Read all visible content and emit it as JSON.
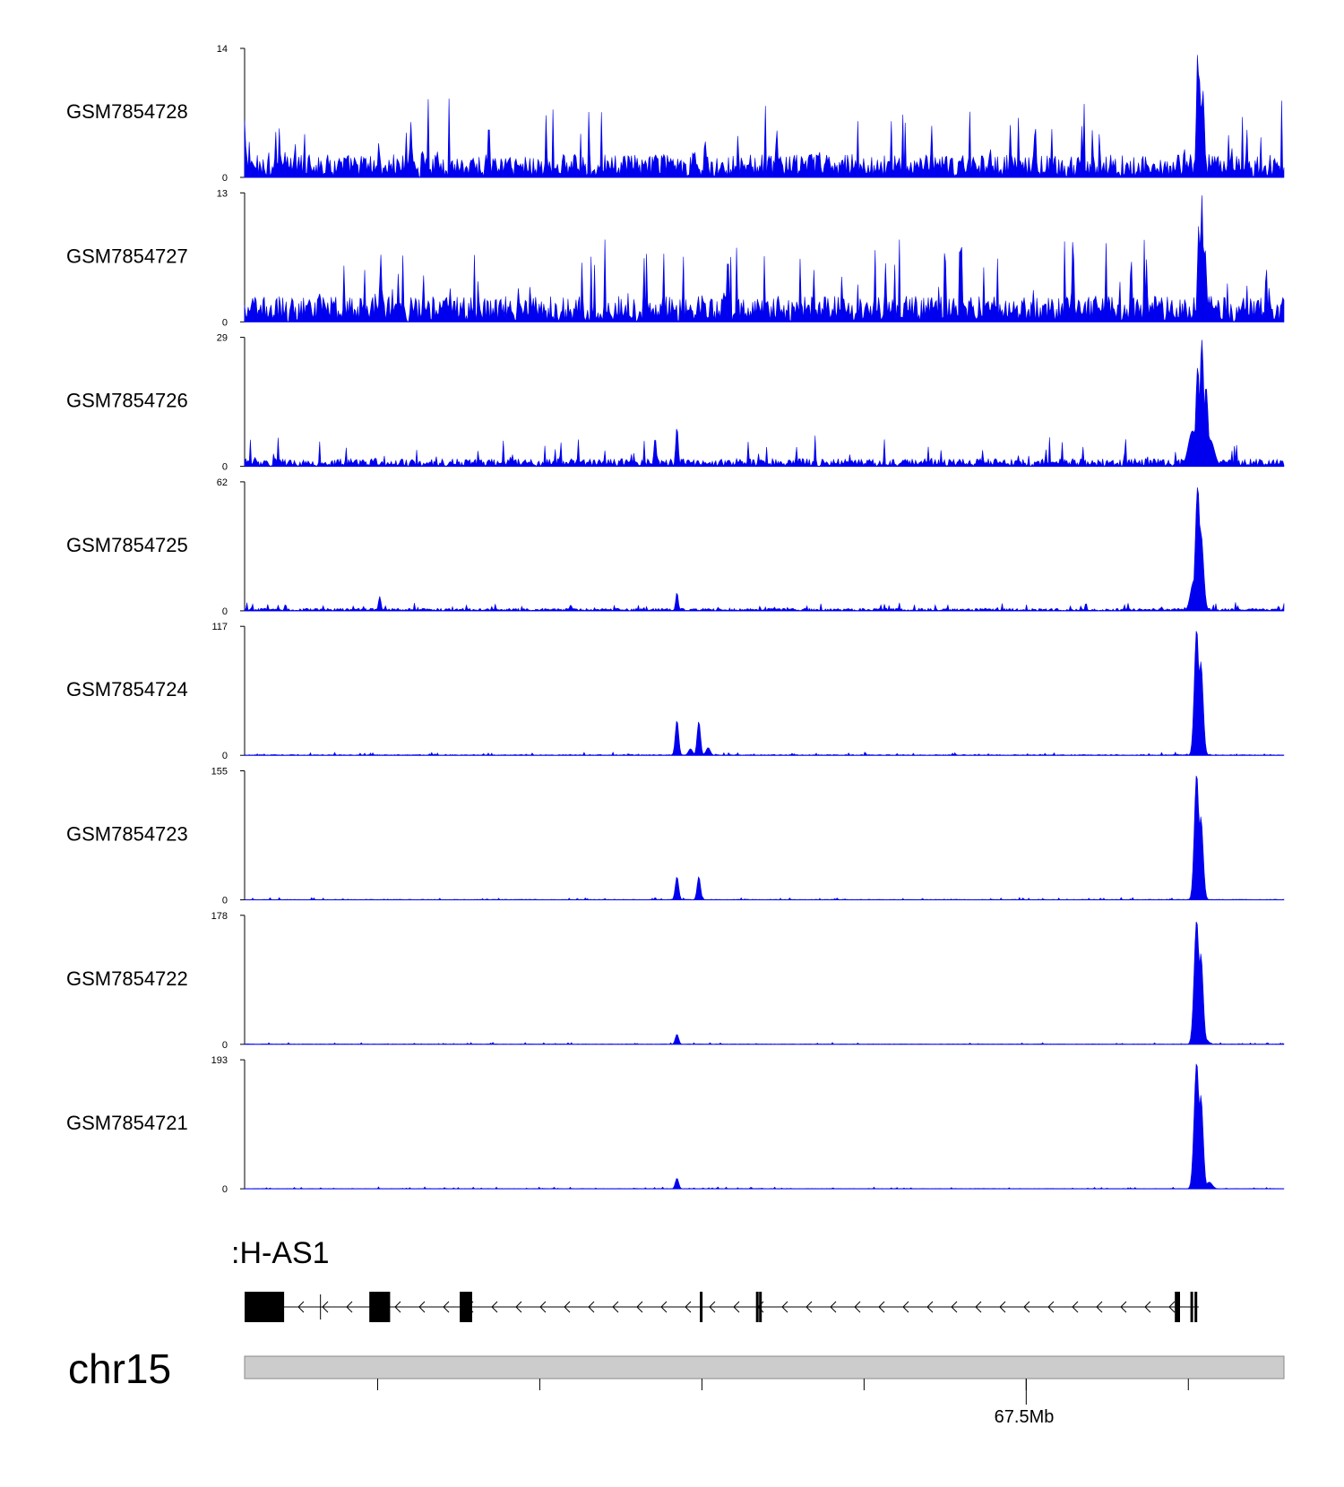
{
  "chart_data": {
    "type": "area",
    "color": "#0000ee",
    "tracks": [
      {
        "name": "GSM7854728",
        "ymax": 14,
        "ymin": 0,
        "noise": 0.18,
        "spikes": 0.45,
        "peaks": [
          [
            0.917,
            13.8,
            0.0012
          ],
          [
            0.919,
            10.5,
            0.0012
          ],
          [
            0.922,
            9.5,
            0.0015
          ],
          [
            0.0,
            6.2,
            0.001
          ],
          [
            0.16,
            6.0,
            0.001
          ],
          [
            0.235,
            6.0,
            0.001
          ],
          [
            0.512,
            5.2,
            0.001
          ],
          [
            0.76,
            4.5,
            0.001
          ]
        ]
      },
      {
        "name": "GSM7854727",
        "ymax": 13,
        "ymin": 0,
        "noise": 0.2,
        "spikes": 0.5,
        "peaks": [
          [
            0.918,
            9.8,
            0.0012
          ],
          [
            0.921,
            12.8,
            0.0012
          ],
          [
            0.924,
            7.5,
            0.0015
          ],
          [
            0.131,
            6.8,
            0.001
          ],
          [
            0.465,
            6.8,
            0.001
          ],
          [
            0.797,
            8.5,
            0.001
          ],
          [
            0.853,
            6.4,
            0.001
          ]
        ]
      },
      {
        "name": "GSM7854726",
        "ymax": 29,
        "ymin": 0,
        "noise": 0.06,
        "spikes": 0.2,
        "peaks": [
          [
            0.917,
            22.5,
            0.0018
          ],
          [
            0.921,
            28.5,
            0.0018
          ],
          [
            0.925,
            18.0,
            0.002
          ],
          [
            0.912,
            8.0,
            0.004
          ],
          [
            0.929,
            6.0,
            0.004
          ],
          [
            0.416,
            9.0,
            0.0012
          ],
          [
            0.395,
            6.5,
            0.0012
          ]
        ]
      },
      {
        "name": "GSM7854725",
        "ymax": 62,
        "ymin": 0,
        "noise": 0.02,
        "spikes": 0.05,
        "peaks": [
          [
            0.917,
            60.0,
            0.0022
          ],
          [
            0.92,
            38.0,
            0.0025
          ],
          [
            0.913,
            14.0,
            0.003
          ],
          [
            0.416,
            9.0,
            0.0012
          ],
          [
            0.13,
            7.0,
            0.0012
          ]
        ]
      },
      {
        "name": "GSM7854724",
        "ymax": 117,
        "ymin": 0,
        "noise": 0.006,
        "spikes": 0.02,
        "peaks": [
          [
            0.916,
            115.0,
            0.0022
          ],
          [
            0.92,
            85.0,
            0.0022
          ],
          [
            0.416,
            32.0,
            0.0016
          ],
          [
            0.437,
            31.0,
            0.0016
          ],
          [
            0.429,
            6.0,
            0.002
          ],
          [
            0.446,
            7.0,
            0.002
          ]
        ]
      },
      {
        "name": "GSM7854723",
        "ymax": 155,
        "ymin": 0,
        "noise": 0.004,
        "spikes": 0.015,
        "peaks": [
          [
            0.916,
            152.0,
            0.0022
          ],
          [
            0.92,
            100.0,
            0.0022
          ],
          [
            0.416,
            28.0,
            0.0016
          ],
          [
            0.437,
            28.0,
            0.0016
          ]
        ]
      },
      {
        "name": "GSM7854722",
        "ymax": 178,
        "ymin": 0,
        "noise": 0.003,
        "spikes": 0.012,
        "peaks": [
          [
            0.916,
            172.0,
            0.0024
          ],
          [
            0.92,
            125.0,
            0.0022
          ],
          [
            0.416,
            14.0,
            0.0016
          ],
          [
            0.924,
            8.0,
            0.003
          ]
        ]
      },
      {
        "name": "GSM7854721",
        "ymax": 193,
        "ymin": 0,
        "noise": 0.003,
        "spikes": 0.012,
        "peaks": [
          [
            0.916,
            190.0,
            0.0024
          ],
          [
            0.92,
            140.0,
            0.0022
          ],
          [
            0.416,
            16.0,
            0.0016
          ],
          [
            0.928,
            10.0,
            0.003
          ]
        ]
      }
    ],
    "gene": {
      "name": ":H-AS1",
      "strand": "-",
      "exons": [
        [
          0.0,
          0.038
        ],
        [
          0.12,
          0.14
        ],
        [
          0.207,
          0.219
        ],
        [
          0.438,
          0.44
        ],
        [
          0.492,
          0.494
        ],
        [
          0.495,
          0.497
        ],
        [
          0.895,
          0.9
        ],
        [
          0.91,
          0.912
        ],
        [
          0.914,
          0.916
        ]
      ]
    },
    "chromosome": "chr15",
    "axis_label": "67.5Mb"
  }
}
